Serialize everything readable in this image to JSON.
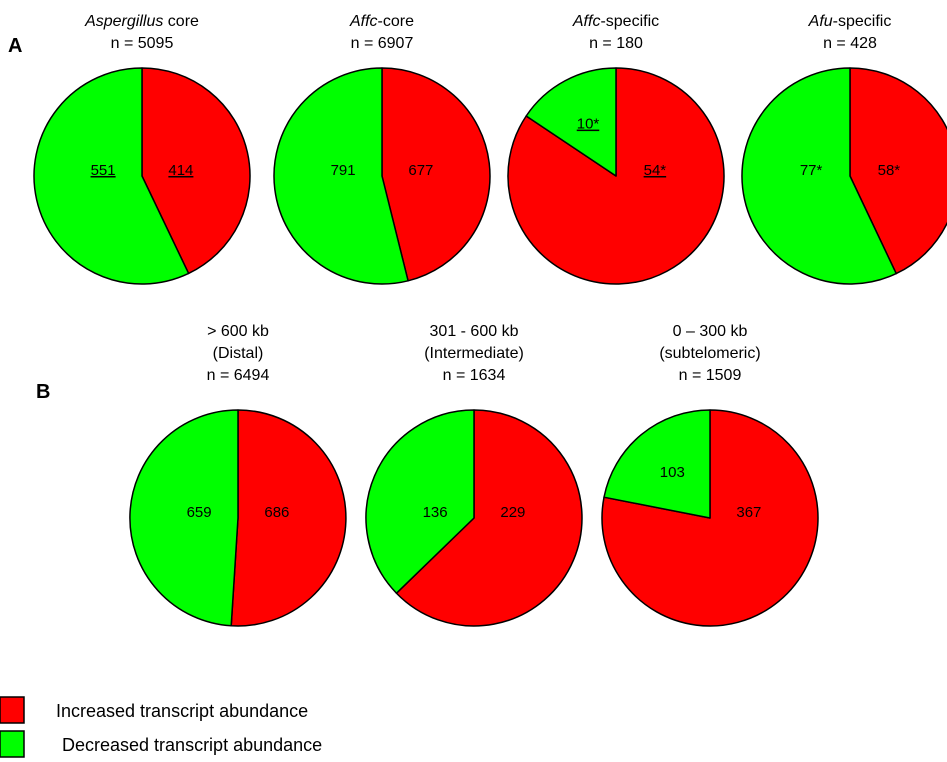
{
  "panels": [
    {
      "letter": "A",
      "charts": [
        {
          "title": [
            [
              {
                "t": "Aspergillus",
                "i": true
              },
              {
                "t": " core",
                "i": false
              }
            ],
            [
              {
                "t": "n = 5095",
                "i": false
              }
            ]
          ],
          "slices": [
            {
              "series": "increased",
              "value": 414,
              "label": "414",
              "underline": true
            },
            {
              "series": "decreased",
              "value": 551,
              "label": "551",
              "underline": true
            }
          ]
        },
        {
          "title": [
            [
              {
                "t": "Affc",
                "i": true
              },
              {
                "t": "-core",
                "i": false
              }
            ],
            [
              {
                "t": "n = 6907",
                "i": false
              }
            ]
          ],
          "slices": [
            {
              "series": "increased",
              "value": 677,
              "label": "677",
              "underline": false
            },
            {
              "series": "decreased",
              "value": 791,
              "label": "791",
              "underline": false
            }
          ]
        },
        {
          "title": [
            [
              {
                "t": "Affc",
                "i": true
              },
              {
                "t": "-specific",
                "i": false
              }
            ],
            [
              {
                "t": "n = 180",
                "i": false
              }
            ]
          ],
          "slices": [
            {
              "series": "increased",
              "value": 54,
              "label": "54*",
              "underline": true
            },
            {
              "series": "decreased",
              "value": 10,
              "label": "10*",
              "underline": true
            }
          ]
        },
        {
          "title": [
            [
              {
                "t": "Afu",
                "i": true
              },
              {
                "t": "-specific",
                "i": false
              }
            ],
            [
              {
                "t": "n = 428",
                "i": false
              }
            ]
          ],
          "slices": [
            {
              "series": "increased",
              "value": 58,
              "label": "58*",
              "underline": false
            },
            {
              "series": "decreased",
              "value": 77,
              "label": "77*",
              "underline": false
            }
          ]
        }
      ]
    },
    {
      "letter": "B",
      "charts": [
        {
          "title": [
            [
              {
                "t": "> 600 kb",
                "i": false
              }
            ],
            [
              {
                "t": "(Distal)",
                "i": false
              }
            ],
            [
              {
                "t": "n = 6494",
                "i": false
              }
            ]
          ],
          "slices": [
            {
              "series": "increased",
              "value": 686,
              "label": "686",
              "underline": false
            },
            {
              "series": "decreased",
              "value": 659,
              "label": "659",
              "underline": false
            }
          ]
        },
        {
          "title": [
            [
              {
                "t": "301 - 600 kb",
                "i": false
              }
            ],
            [
              {
                "t": "(Intermediate)",
                "i": false
              }
            ],
            [
              {
                "t": "n = 1634",
                "i": false
              }
            ]
          ],
          "slices": [
            {
              "series": "increased",
              "value": 229,
              "label": "229",
              "underline": false
            },
            {
              "series": "decreased",
              "value": 136,
              "label": "136",
              "underline": false
            }
          ]
        },
        {
          "title": [
            [
              {
                "t": "0 – 300 kb",
                "i": false
              }
            ],
            [
              {
                "t": "(subtelomeric)",
                "i": false
              }
            ],
            [
              {
                "t": "n = 1509",
                "i": false
              }
            ]
          ],
          "slices": [
            {
              "series": "increased",
              "value": 367,
              "label": "367",
              "underline": false
            },
            {
              "series": "decreased",
              "value": 103,
              "label": "103",
              "underline": false
            }
          ]
        }
      ]
    }
  ],
  "legend": [
    {
      "series": "increased",
      "label": "Increased transcript abundance"
    },
    {
      "series": "decreased",
      "label": "Decreased transcript abundance"
    }
  ],
  "colors": {
    "increased": "#ff0000",
    "decreased": "#00ff00",
    "outline": "#000000"
  },
  "chart_data": [
    {
      "type": "pie",
      "title": "Aspergillus core n = 5095",
      "categories": [
        "Increased transcript abundance",
        "Decreased transcript abundance"
      ],
      "values": [
        414,
        551
      ]
    },
    {
      "type": "pie",
      "title": "Affc-core n = 6907",
      "categories": [
        "Increased transcript abundance",
        "Decreased transcript abundance"
      ],
      "values": [
        677,
        791
      ]
    },
    {
      "type": "pie",
      "title": "Affc-specific n = 180",
      "categories": [
        "Increased transcript abundance",
        "Decreased transcript abundance"
      ],
      "values": [
        54,
        10
      ]
    },
    {
      "type": "pie",
      "title": "Afu-specific n = 428",
      "categories": [
        "Increased transcript abundance",
        "Decreased transcript abundance"
      ],
      "values": [
        58,
        77
      ]
    },
    {
      "type": "pie",
      "title": "> 600 kb (Distal) n = 6494",
      "categories": [
        "Increased transcript abundance",
        "Decreased transcript abundance"
      ],
      "values": [
        686,
        659
      ]
    },
    {
      "type": "pie",
      "title": "301 - 600 kb (Intermediate) n = 1634",
      "categories": [
        "Increased transcript abundance",
        "Decreased transcript abundance"
      ],
      "values": [
        229,
        136
      ]
    },
    {
      "type": "pie",
      "title": "0 – 300 kb (subtelomeric) n = 1509",
      "categories": [
        "Increased transcript abundance",
        "Decreased transcript abundance"
      ],
      "values": [
        367,
        103
      ]
    }
  ]
}
